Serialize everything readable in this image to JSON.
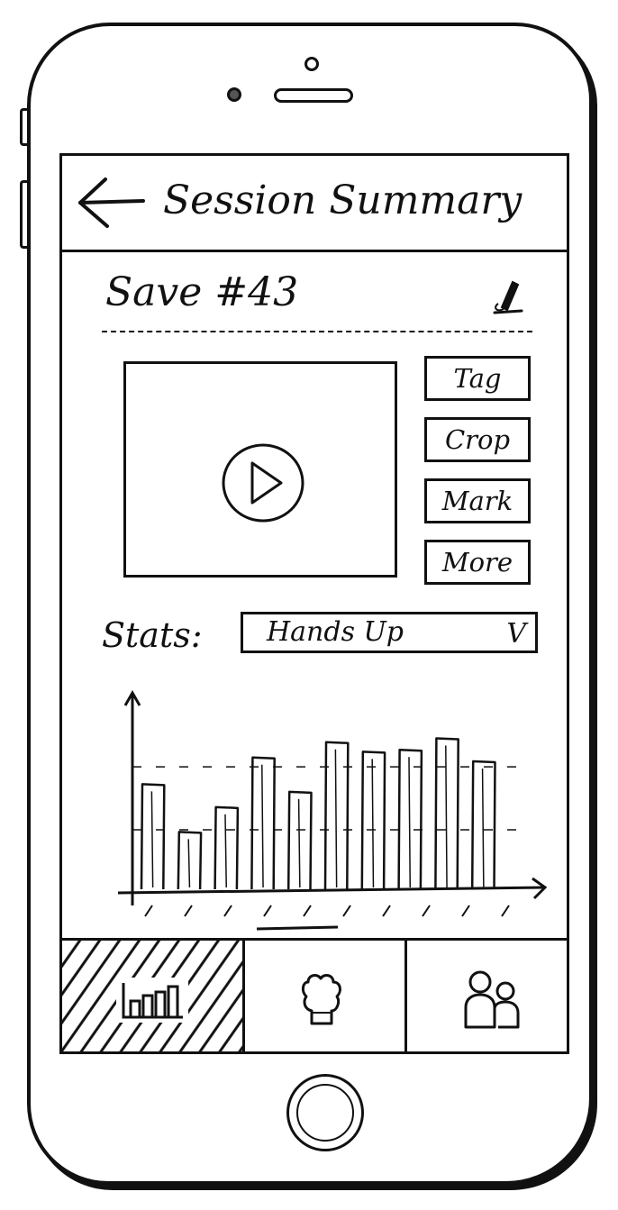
{
  "header": {
    "back_icon": "arrow-left-icon",
    "title": "Session Summary"
  },
  "session": {
    "name": "Save #43",
    "edit_icon": "pencil-icon"
  },
  "video": {
    "play_icon": "play-icon"
  },
  "actions": [
    {
      "label": "Tag"
    },
    {
      "label": "Crop"
    },
    {
      "label": "Mark"
    },
    {
      "label": "More"
    }
  ],
  "stats": {
    "label": "Stats:",
    "selected": "Hands Up",
    "chevron": "V"
  },
  "chart_data": {
    "type": "bar",
    "values": [
      55,
      30,
      43,
      69,
      51,
      77,
      72,
      73,
      79,
      67
    ],
    "ylim": [
      0,
      100
    ]
  },
  "tabbar": {
    "tabs": [
      {
        "icon": "bar-chart-icon",
        "selected": true
      },
      {
        "icon": "fist-icon",
        "selected": false
      },
      {
        "icon": "group-icon",
        "selected": false
      }
    ]
  }
}
